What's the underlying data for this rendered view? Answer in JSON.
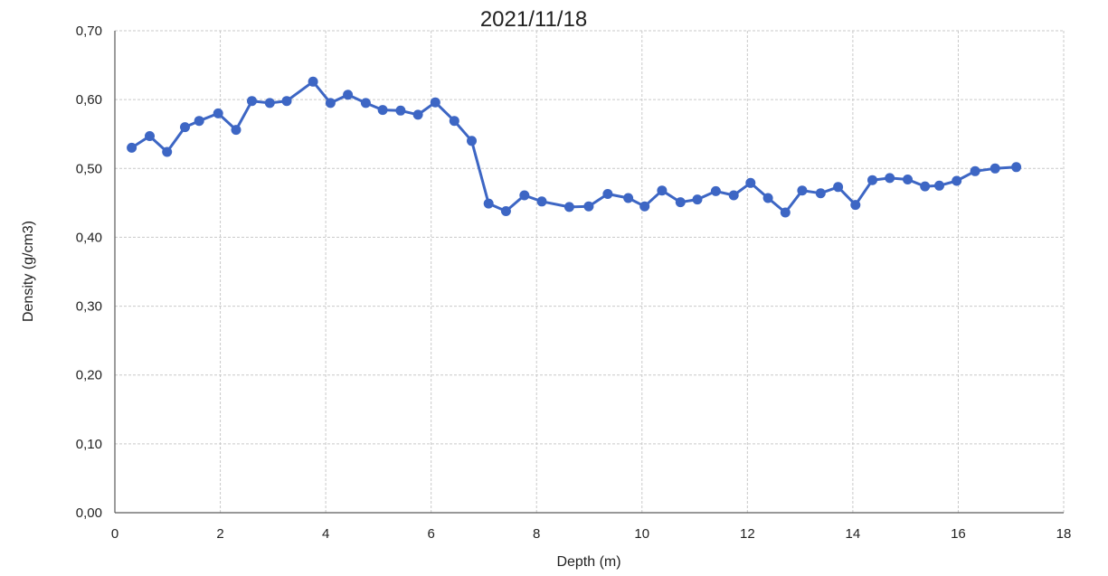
{
  "chart_data": {
    "type": "line",
    "title": "2021/11/18",
    "xlabel": "Depth (m)",
    "ylabel": "Density (g/cm3)",
    "xlim": [
      0,
      18
    ],
    "ylim": [
      0,
      0.7
    ],
    "x_ticks": [
      "0",
      "2",
      "4",
      "6",
      "8",
      "10",
      "12",
      "14",
      "16",
      "18"
    ],
    "x_tick_values": [
      0,
      2,
      4,
      6,
      8,
      10,
      12,
      14,
      16,
      18
    ],
    "y_ticks": [
      "0,00",
      "0,10",
      "0,20",
      "0,30",
      "0,40",
      "0,50",
      "0,60",
      "0,70"
    ],
    "y_tick_values": [
      0,
      0.1,
      0.2,
      0.3,
      0.4,
      0.5,
      0.6,
      0.7
    ],
    "grid": true,
    "legend": "none",
    "series": [
      {
        "color": "#3d66c4",
        "marker": "circle",
        "x": [
          0.32,
          0.66,
          0.99,
          1.33,
          1.6,
          1.96,
          2.3,
          2.6,
          2.94,
          3.26,
          3.76,
          4.09,
          4.42,
          4.76,
          5.08,
          5.42,
          5.75,
          6.08,
          6.44,
          6.77,
          7.09,
          7.42,
          7.77,
          8.1,
          8.62,
          8.99,
          9.35,
          9.74,
          10.05,
          10.38,
          10.73,
          11.05,
          11.4,
          11.74,
          12.06,
          12.39,
          12.72,
          13.04,
          13.39,
          13.72,
          14.05,
          14.37,
          14.7,
          15.04,
          15.37,
          15.64,
          15.97,
          16.32,
          16.7,
          17.1
        ],
        "y": [
          0.53,
          0.547,
          0.524,
          0.56,
          0.569,
          0.58,
          0.556,
          0.598,
          0.595,
          0.598,
          0.626,
          0.595,
          0.607,
          0.595,
          0.585,
          0.584,
          0.578,
          0.596,
          0.569,
          0.54,
          0.449,
          0.438,
          0.461,
          0.452,
          0.444,
          0.445,
          0.463,
          0.457,
          0.445,
          0.468,
          0.451,
          0.455,
          0.467,
          0.461,
          0.479,
          0.457,
          0.436,
          0.468,
          0.464,
          0.473,
          0.447,
          0.483,
          0.486,
          0.484,
          0.474,
          0.475,
          0.482,
          0.496,
          0.5,
          0.502
        ]
      }
    ]
  }
}
